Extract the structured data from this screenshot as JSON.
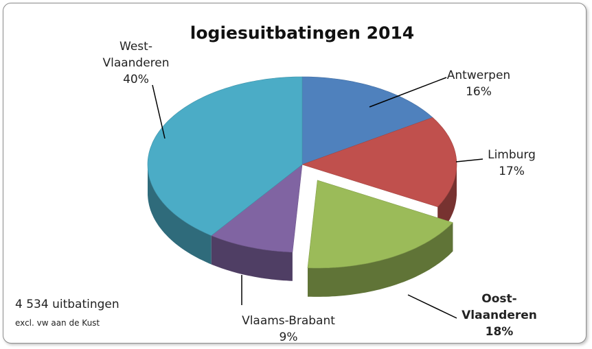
{
  "chart_data": {
    "type": "pie",
    "title": "logiesuitbatingen 2014",
    "categories": [
      "Antwerpen",
      "Limburg",
      "Oost-Vlaanderen",
      "Vlaams-Brabant",
      "West-Vlaanderen"
    ],
    "values": [
      16,
      17,
      18,
      9,
      40
    ],
    "value_labels": [
      "16%",
      "17%",
      "18%",
      "9%",
      "40%"
    ],
    "colors": [
      "#4f81bd",
      "#c0504d",
      "#9bbb59",
      "#8064a2",
      "#4bacc6"
    ],
    "annotations": [
      "4 534 uitbatingen",
      "excl. vw aan de Kust"
    ]
  }
}
